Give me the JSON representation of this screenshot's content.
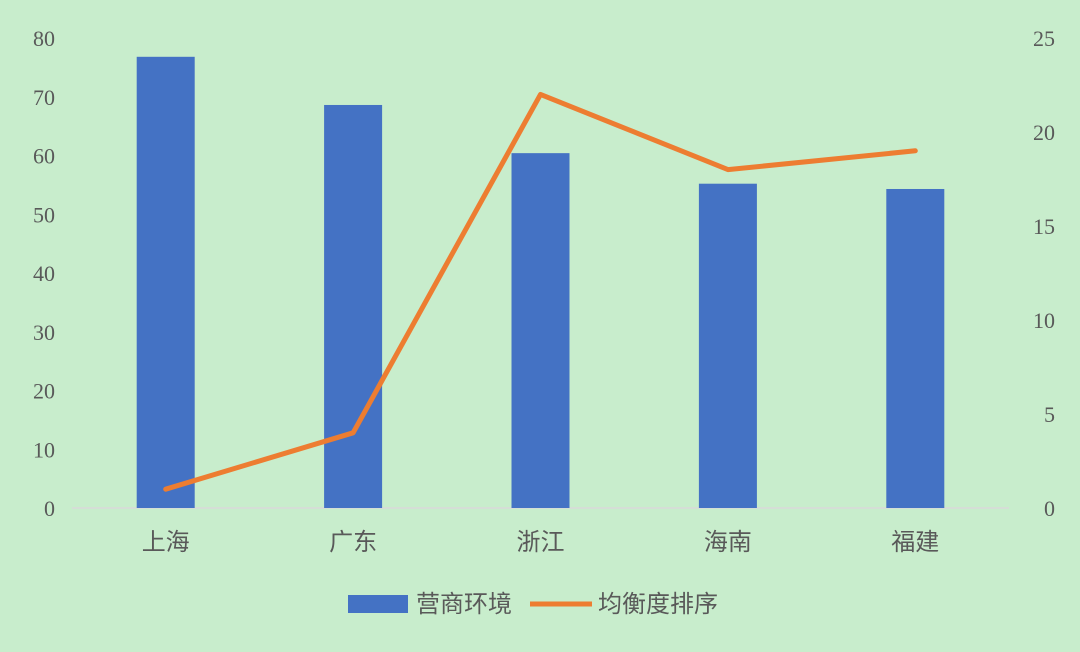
{
  "chart_data": {
    "type": "bar+line",
    "categories": [
      "上海",
      "广东",
      "浙江",
      "海南",
      "福建"
    ],
    "series": [
      {
        "name": "营商环境",
        "type": "bar",
        "axis": "left",
        "color": "#4472c4",
        "values": [
          76.8,
          68.6,
          60.4,
          55.2,
          54.3
        ]
      },
      {
        "name": "均衡度排序",
        "type": "line",
        "axis": "right",
        "color": "#ed7d31",
        "values": [
          1,
          4,
          22,
          18,
          19
        ]
      }
    ],
    "y_left": {
      "range": [
        0,
        80
      ],
      "ticks": [
        "0",
        "10",
        "20",
        "30",
        "40",
        "50",
        "60",
        "70",
        "80"
      ]
    },
    "y_right": {
      "range": [
        0,
        25
      ],
      "ticks": [
        "0",
        "5",
        "10",
        "15",
        "20",
        "25"
      ]
    },
    "grid": false,
    "legend": "bottom",
    "background": "#c8edcc"
  }
}
